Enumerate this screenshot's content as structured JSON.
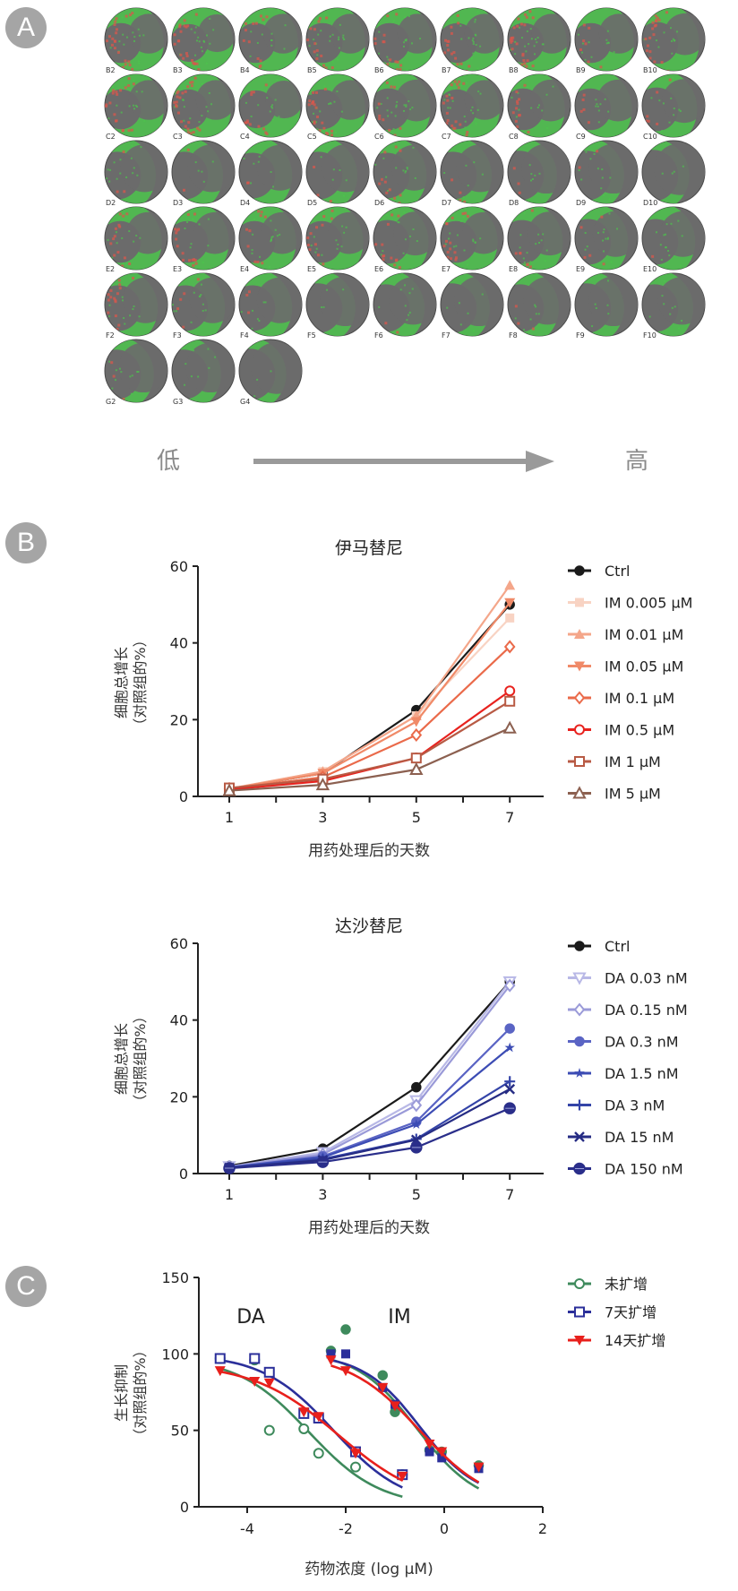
{
  "panels": {
    "a": "A",
    "b": "B",
    "c": "C"
  },
  "panel_a": {
    "rows": [
      [
        "B2",
        "B3",
        "B4",
        "B5",
        "B6",
        "B7",
        "B8",
        "B9",
        "B10"
      ],
      [
        "C2",
        "C3",
        "C4",
        "C5",
        "C6",
        "C7",
        "C8",
        "C9",
        "C10"
      ],
      [
        "D2",
        "D3",
        "D4",
        "D5",
        "D6",
        "D7",
        "D8",
        "D9",
        "D10"
      ],
      [
        "E2",
        "E3",
        "E4",
        "E5",
        "E6",
        "E7",
        "E8",
        "E9",
        "E10"
      ],
      [
        "F2",
        "F3",
        "F4",
        "F5",
        "F6",
        "F7",
        "F8",
        "F9",
        "F10"
      ],
      [
        "G2",
        "G3",
        "G4"
      ]
    ],
    "red_intensity": [
      [
        0.7,
        0.6,
        0.4,
        0.5,
        0.5,
        0.4,
        0.9,
        0.3,
        0.6
      ],
      [
        0.6,
        0.8,
        0.4,
        0.7,
        0.3,
        0.7,
        0.3,
        0.2,
        0.2
      ],
      [
        0.1,
        0.1,
        0.1,
        0.1,
        0.3,
        0.1,
        0.2,
        0.1,
        0.0
      ],
      [
        0.4,
        0.4,
        0.3,
        0.5,
        0.4,
        0.6,
        0.2,
        0.1,
        0.1
      ],
      [
        0.3,
        0.2,
        0.1,
        0.0,
        0.1,
        0.0,
        0.1,
        0.0,
        0.0
      ],
      [
        0.2,
        0.0,
        0.0
      ]
    ],
    "green_intensity": [
      [
        0.8,
        0.9,
        0.8,
        0.8,
        0.8,
        0.8,
        0.8,
        0.8,
        0.7
      ],
      [
        0.8,
        0.8,
        0.9,
        0.8,
        0.7,
        0.8,
        0.7,
        0.7,
        0.6
      ],
      [
        0.4,
        0.4,
        0.5,
        0.4,
        0.5,
        0.4,
        0.3,
        0.3,
        0.2
      ],
      [
        0.7,
        0.7,
        0.7,
        0.7,
        0.6,
        0.7,
        0.6,
        0.5,
        0.5
      ],
      [
        0.5,
        0.5,
        0.5,
        0.3,
        0.4,
        0.3,
        0.4,
        0.3,
        0.4
      ],
      [
        0.3,
        0.3,
        0.2
      ]
    ],
    "low_label": "低",
    "high_label": "高",
    "colors": {
      "well_gray": "#6b6b6b",
      "green": "#4cc44c",
      "red": "#d8574c",
      "arrow": "#9a9a9a"
    }
  },
  "chart_data": [
    {
      "type": "line",
      "title": "伊马替尼",
      "xlabel": "用药处理后的天数",
      "ylabel": [
        "细胞总增长",
        "（对照组的%）"
      ],
      "x": [
        1,
        3,
        5,
        7
      ],
      "xticks": [
        "1",
        "3",
        "5",
        "7"
      ],
      "yticks": [
        "0",
        "20",
        "40",
        "60"
      ],
      "ylim": [
        0,
        60
      ],
      "xlim": [
        0.3,
        8.2
      ],
      "legend": "right",
      "series": [
        {
          "name": "Ctrl",
          "color": "#1a1a1a",
          "marker": "circle-filled",
          "values": [
            2,
            6,
            22.5,
            50
          ]
        },
        {
          "name": "IM 0.005 μM",
          "color": "#f8d3c3",
          "marker": "square-filled",
          "values": [
            2,
            6.5,
            21,
            46.5
          ]
        },
        {
          "name": "IM 0.01 μM",
          "color": "#f4a68a",
          "marker": "triangle-filled",
          "values": [
            2,
            6.5,
            21,
            55
          ]
        },
        {
          "name": "IM 0.05 μM",
          "color": "#f08a68",
          "marker": "triangle-down-filled",
          "values": [
            2,
            6,
            19.5,
            50.5
          ]
        },
        {
          "name": "IM 0.1 μM",
          "color": "#ea6a4a",
          "marker": "diamond-open",
          "values": [
            2,
            5,
            16,
            39
          ]
        },
        {
          "name": "IM 0.5 μM",
          "color": "#e8221e",
          "marker": "circle-open",
          "values": [
            1.8,
            4,
            10,
            27.5
          ]
        },
        {
          "name": "IM 1 μM",
          "color": "#b85a44",
          "marker": "square-open",
          "values": [
            2.2,
            4.5,
            10,
            24.8
          ]
        },
        {
          "name": "IM 5 μM",
          "color": "#8c6050",
          "marker": "triangle-open",
          "values": [
            1.5,
            3,
            7,
            17.8
          ]
        }
      ]
    },
    {
      "type": "line",
      "title": "达沙替尼",
      "xlabel": "用药处理后的天数",
      "ylabel": [
        "细胞总增长",
        "（对照组的%）"
      ],
      "x": [
        1,
        3,
        5,
        7
      ],
      "xticks": [
        "1",
        "3",
        "5",
        "7"
      ],
      "yticks": [
        "0",
        "20",
        "40",
        "60"
      ],
      "ylim": [
        0,
        60
      ],
      "xlim": [
        0.3,
        8.2
      ],
      "legend": "right",
      "series": [
        {
          "name": "Ctrl",
          "color": "#1a1a1a",
          "marker": "circle-filled",
          "values": [
            2,
            6.5,
            22.5,
            50
          ]
        },
        {
          "name": "DA 0.03 nM",
          "color": "#b8b8e6",
          "marker": "triangle-down-open",
          "values": [
            1.8,
            5.5,
            19,
            50
          ]
        },
        {
          "name": "DA 0.15 nM",
          "color": "#9a9ad8",
          "marker": "diamond-open",
          "values": [
            1.8,
            5,
            17.8,
            49
          ]
        },
        {
          "name": "DA 0.3 nM",
          "color": "#5a64c4",
          "marker": "circle-filled",
          "values": [
            1.6,
            4.5,
            13.5,
            37.8
          ]
        },
        {
          "name": "DA 1.5 nM",
          "color": "#3c4cb4",
          "marker": "star",
          "values": [
            1.6,
            4.2,
            12.8,
            32.8
          ]
        },
        {
          "name": "DA 3 nM",
          "color": "#3444a8",
          "marker": "plus",
          "values": [
            1.5,
            3.8,
            9,
            24
          ]
        },
        {
          "name": "DA 15 nM",
          "color": "#262c84",
          "marker": "cross",
          "values": [
            1.5,
            3.5,
            8.8,
            22
          ]
        },
        {
          "name": "DA 150 nM",
          "color": "#2a2e8a",
          "marker": "circle-dot",
          "values": [
            1.4,
            3,
            6.8,
            17
          ]
        }
      ]
    },
    {
      "type": "scatter",
      "title": "",
      "xlabel": "药物浓度 (log μM)",
      "ylabel": [
        "生长抑制",
        "（对照组的%）"
      ],
      "xticks": [
        "-4",
        "-2",
        "0",
        "2"
      ],
      "yticks": [
        "0",
        "50",
        "100",
        "150"
      ],
      "xlim": [
        -5,
        2
      ],
      "ylim": [
        0,
        150
      ],
      "annotations": [
        "DA",
        "IM"
      ],
      "legend": "top-right",
      "series": [
        {
          "name": "未扩增",
          "color": "#3e8a5c",
          "marker": "circle-open",
          "da_points": [
            [
              -4.55,
              97
            ],
            [
              -3.85,
              96
            ],
            [
              -3.55,
              50
            ],
            [
              -2.85,
              51
            ],
            [
              -2.55,
              35
            ],
            [
              -1.8,
              26
            ],
            [
              -0.85,
              21
            ]
          ],
          "im_points": [
            [
              -2.3,
              102
            ],
            [
              -2.0,
              116
            ],
            [
              -1.25,
              86
            ],
            [
              -1.0,
              62
            ],
            [
              -0.3,
              37
            ],
            [
              -0.05,
              36
            ],
            [
              0.7,
              27
            ]
          ],
          "da_curve": {
            "top": 98,
            "bottom": 0,
            "logic50": -2.75,
            "hill": 0.6,
            "from": -4.55,
            "to": -0.85
          },
          "im_curve": {
            "top": 102,
            "bottom": 0,
            "logic50": -0.55,
            "hill": 0.7,
            "from": -2.3,
            "to": 0.7
          }
        },
        {
          "name": "7天扩增",
          "color": "#2b2f9a",
          "marker": "square-open",
          "da_points": [
            [
              -4.55,
              97
            ],
            [
              -3.85,
              97
            ],
            [
              -3.55,
              88
            ],
            [
              -2.85,
              61
            ],
            [
              -2.55,
              58
            ],
            [
              -1.8,
              36
            ],
            [
              -0.85,
              21
            ]
          ],
          "im_points": [
            [
              -2.3,
              100
            ],
            [
              -2.0,
              100
            ],
            [
              -1.25,
              78
            ],
            [
              -1.0,
              67
            ],
            [
              -0.3,
              36
            ],
            [
              -0.05,
              32
            ],
            [
              0.7,
              25
            ]
          ],
          "da_curve": {
            "top": 100,
            "bottom": 0,
            "logic50": -2.25,
            "hill": 0.6,
            "from": -4.55,
            "to": -0.85
          },
          "im_curve": {
            "top": 100,
            "bottom": 5,
            "logic50": -0.5,
            "hill": 0.75,
            "from": -2.3,
            "to": 0.7
          }
        },
        {
          "name": "14天扩增",
          "color": "#e8201c",
          "marker": "triangle-down-filled",
          "da_points": [
            [
              -4.55,
              89
            ],
            [
              -3.85,
              82
            ],
            [
              -3.55,
              81
            ],
            [
              -2.85,
              62
            ],
            [
              -2.55,
              59
            ],
            [
              -1.8,
              35
            ],
            [
              -0.85,
              20
            ]
          ],
          "im_points": [
            [
              -2.3,
              96
            ],
            [
              -2.0,
              89
            ],
            [
              -1.25,
              78
            ],
            [
              -1.0,
              66
            ],
            [
              -0.3,
              41
            ],
            [
              -0.05,
              36
            ],
            [
              0.7,
              26
            ]
          ],
          "da_curve": {
            "top": 94,
            "bottom": 0,
            "logic50": -2.15,
            "hill": 0.5,
            "from": -4.55,
            "to": -0.85
          },
          "im_curve": {
            "top": 100,
            "bottom": 0,
            "logic50": -0.5,
            "hill": 0.6,
            "from": -2.3,
            "to": 0.7
          }
        }
      ]
    }
  ]
}
